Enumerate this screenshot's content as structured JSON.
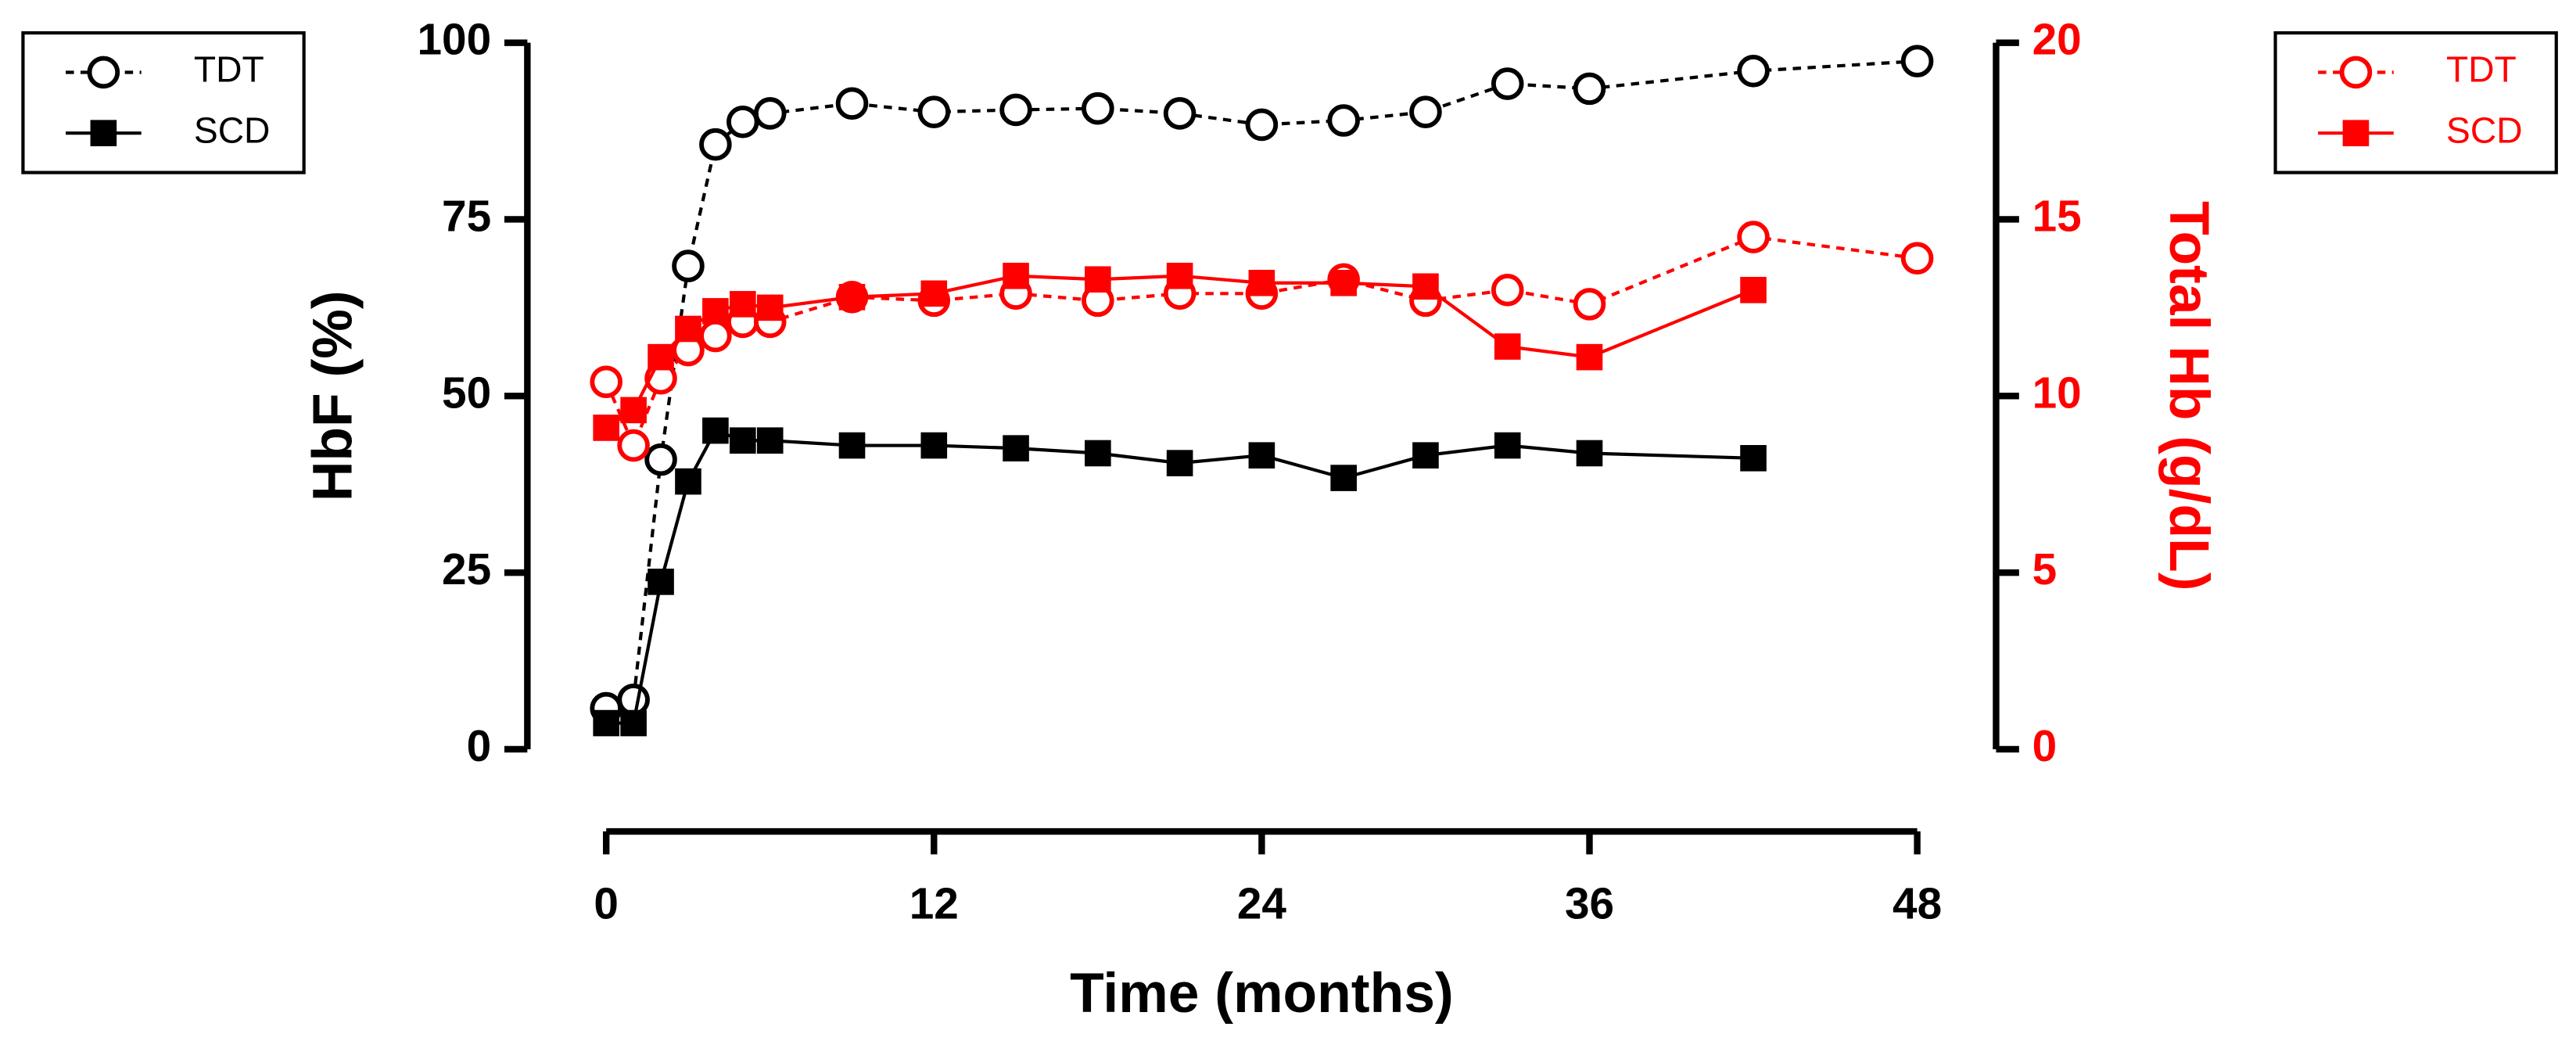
{
  "chart_data": {
    "type": "line",
    "xlabel": "Time (months)",
    "ylabel": "HbF (%)",
    "y2label": "Total Hb (g/dL)",
    "y2color": "#ff0000",
    "xlim": [
      0,
      48
    ],
    "xticks": [
      0,
      12,
      24,
      36,
      48
    ],
    "ylim": [
      0,
      100
    ],
    "yticks": [
      0,
      25,
      50,
      75,
      100
    ],
    "y2lim": [
      0,
      20
    ],
    "y2ticks": [
      0,
      5,
      10,
      15,
      20
    ],
    "series": [
      {
        "name": "TDT",
        "color": "#000000",
        "axis": "y",
        "marker": "open-circle",
        "linestyle": "dashed",
        "x": [
          0,
          1,
          2,
          3,
          4,
          5,
          6,
          9,
          12,
          15,
          18,
          21,
          24,
          27,
          30,
          33,
          36,
          42,
          48
        ],
        "values": [
          5.8,
          7.0,
          41,
          68.4,
          85.6,
          88.8,
          90,
          91.4,
          90.2,
          90.5,
          90.7,
          90,
          88.4,
          89,
          90.2,
          94.2,
          93.5,
          96,
          97.4
        ]
      },
      {
        "name": "SCD",
        "color": "#000000",
        "axis": "y",
        "marker": "filled-square",
        "linestyle": "solid",
        "x": [
          0,
          1,
          2,
          3,
          4,
          5,
          6,
          9,
          12,
          15,
          18,
          21,
          24,
          27,
          30,
          33,
          36,
          42
        ],
        "values": [
          3.7,
          3.7,
          23.7,
          37.9,
          45.1,
          43.7,
          43.7,
          43,
          43,
          42.6,
          41.9,
          40.5,
          41.6,
          38.4,
          41.6,
          43,
          41.9,
          41.2
        ]
      },
      {
        "name": "TDT",
        "color": "#ff0000",
        "axis": "y2",
        "marker": "open-circle",
        "linestyle": "dashed",
        "x": [
          0,
          1,
          2,
          3,
          4,
          5,
          6,
          9,
          12,
          15,
          18,
          21,
          24,
          27,
          30,
          33,
          36,
          42,
          48
        ],
        "values": [
          10.4,
          8.6,
          10.5,
          11.3,
          11.7,
          12.1,
          12.1,
          12.8,
          12.7,
          12.9,
          12.7,
          12.9,
          12.9,
          13.3,
          12.7,
          13.0,
          12.6,
          14.5,
          13.9
        ]
      },
      {
        "name": "SCD",
        "color": "#ff0000",
        "axis": "y2",
        "marker": "filled-square",
        "linestyle": "solid",
        "x": [
          0,
          1,
          2,
          3,
          4,
          5,
          6,
          9,
          12,
          15,
          18,
          21,
          24,
          27,
          30,
          33,
          36,
          42
        ],
        "values": [
          9.1,
          9.6,
          11.1,
          11.9,
          12.4,
          12.6,
          12.5,
          12.8,
          12.9,
          13.4,
          13.3,
          13.4,
          13.2,
          13.2,
          13.1,
          11.4,
          11.1,
          13.0
        ]
      }
    ]
  }
}
